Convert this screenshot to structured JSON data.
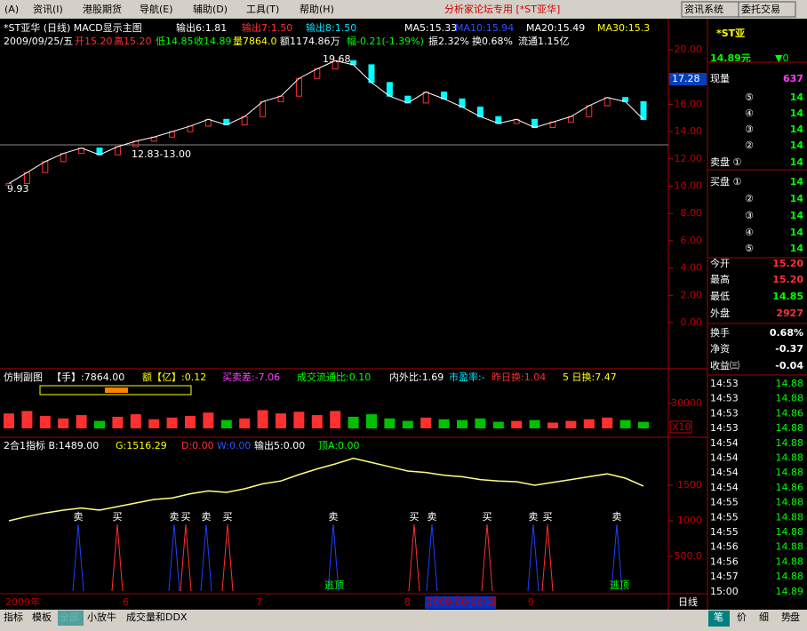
{
  "menu": {
    "items": [
      "(A)",
      "资讯(I)",
      "港股期货",
      "导航(E)",
      "辅助(D)",
      "工具(T)",
      "帮助(H)"
    ],
    "title": "分析家论坛专用 [*ST亚华]",
    "buttons": [
      "资讯系统",
      "委托交易"
    ]
  },
  "main": {
    "header": [
      {
        "text": "*ST亚华 (日线) MACD显示主图",
        "color": "#ffffff"
      },
      {
        "text": "输出6:1.81",
        "color": "#ffffff"
      },
      {
        "text": "输出7:1.50",
        "color": "#ff3030"
      },
      {
        "text": "输出8:1.50",
        "color": "#00e0ff"
      },
      {
        "text": "MA5:15.33",
        "color": "#ffffff"
      },
      {
        "text": "MA10:15.94",
        "color": "#3050ff"
      },
      {
        "text": "MA20:15.49",
        "color": "#ffffff"
      },
      {
        "text": "MA30:15.3",
        "color": "#ffff00"
      }
    ],
    "info": [
      {
        "text": "2009/09/25/五",
        "color": "#ffffff"
      },
      {
        "text": "开15.20",
        "color": "#ff3030"
      },
      {
        "text": "高15.20",
        "color": "#ff3030"
      },
      {
        "text": "低14.85",
        "color": "#00ff00"
      },
      {
        "text": "收14.89",
        "color": "#00ff00"
      },
      {
        "text": "量7864.0",
        "color": "#ffff00"
      },
      {
        "text": "额1174.86万",
        "color": "#ffffff"
      },
      {
        "text": "幅-0.21(-1.39%)",
        "color": "#00ff00"
      },
      {
        "text": "振2.32%",
        "color": "#ffffff"
      },
      {
        "text": "换0.68%",
        "color": "#ffffff"
      },
      {
        "text": "流通1.15亿",
        "color": "#ffffff"
      }
    ],
    "annotations": [
      "19.68",
      "12.83-13.00",
      "9.93"
    ],
    "price_tag": "17.28",
    "yticks": [
      {
        "value": 0,
        "label": "0.00"
      },
      {
        "value": 2,
        "label": "2.00"
      },
      {
        "value": 4,
        "label": "4.00"
      },
      {
        "value": 6,
        "label": "6.00"
      },
      {
        "value": 8,
        "label": "8.00"
      },
      {
        "value": 10,
        "label": "10.00"
      },
      {
        "value": 12,
        "label": "12.00"
      },
      {
        "value": 14,
        "label": "14.00"
      },
      {
        "value": 16,
        "label": "16.00"
      },
      {
        "value": 18,
        "label": "18.00"
      },
      {
        "value": 20,
        "label": "20.00"
      }
    ],
    "closes": [
      10.2,
      11.0,
      11.8,
      12.4,
      12.8,
      12.3,
      12.9,
      13.3,
      13.6,
      14.0,
      14.4,
      14.9,
      14.5,
      15.1,
      16.2,
      16.6,
      17.9,
      18.6,
      19.2,
      18.9,
      17.6,
      16.6,
      16.1,
      16.9,
      16.4,
      15.8,
      15.1,
      14.6,
      14.9,
      14.3,
      14.7,
      15.1,
      15.9,
      16.5,
      16.2,
      14.89
    ]
  },
  "volume": {
    "header": [
      {
        "text": "仿制副图",
        "color": "#ffffff"
      },
      {
        "text": "【手】:7864.00",
        "color": "#ffffff"
      },
      {
        "text": "额【亿】:0.12",
        "color": "#ffff00"
      },
      {
        "text": "买卖差:-7.06",
        "color": "#ff40ff"
      },
      {
        "text": "成交流通比:0.10",
        "color": "#00ff00"
      },
      {
        "text": "内外比:1.69",
        "color": "#ffffff"
      },
      {
        "text": "市盈率:-",
        "color": "#00e0ff"
      },
      {
        "text": "昨日换:1.04",
        "color": "#ff3030"
      },
      {
        "text": "5 日换:7.47",
        "color": "#ffff00"
      }
    ],
    "yticks": [
      30000
    ],
    "scale": "X10",
    "values": [
      18000,
      21000,
      15000,
      12000,
      16000,
      9000,
      14000,
      17000,
      11000,
      13000,
      15000,
      19000,
      10000,
      12000,
      22000,
      18000,
      20000,
      16000,
      21000,
      14000,
      17000,
      12000,
      9000,
      13000,
      11000,
      10000,
      12000,
      8000,
      9000,
      10000,
      7000,
      9000,
      11000,
      13000,
      10000,
      7864
    ]
  },
  "indicator": {
    "header": [
      {
        "text": "2合1指标 B:1489.00",
        "color": "#ffffff"
      },
      {
        "text": "G:1516.29",
        "color": "#ffff00"
      },
      {
        "text": "D:0.00",
        "color": "#ff3030"
      },
      {
        "text": "W:0.00",
        "color": "#3050ff"
      },
      {
        "text": "输出5:0.00",
        "color": "#ffffff"
      },
      {
        "text": "顶A:0.00",
        "color": "#00ff00"
      }
    ],
    "yticks": [
      {
        "value": 500,
        "label": "500.0"
      },
      1000,
      1500
    ],
    "values": [
      1000,
      1060,
      1110,
      1150,
      1180,
      1150,
      1200,
      1250,
      1300,
      1320,
      1380,
      1420,
      1400,
      1450,
      1520,
      1560,
      1650,
      1730,
      1800,
      1880,
      1820,
      1760,
      1700,
      1680,
      1640,
      1620,
      1580,
      1560,
      1550,
      1500,
      1540,
      1580,
      1620,
      1660,
      1600,
      1489
    ],
    "signals": [
      "卖",
      "买",
      "卖",
      "买",
      "卖",
      "买",
      "卖",
      "买",
      "卖",
      "买",
      "卖",
      "买",
      "卖"
    ],
    "escape": [
      "逃顶",
      "逃顶"
    ]
  },
  "dates": [
    "2009年",
    "6",
    "7",
    "8",
    "2009/08/06/四",
    "9",
    "日线"
  ],
  "tabs": [
    "指标",
    "模板",
    "全部",
    "小放牛",
    "成交量和DDX"
  ],
  "quote": {
    "name": "*ST亚",
    "price": "14.89元",
    "change": "▼0",
    "rows": [
      [
        "现量",
        "637"
      ],
      [
        "⑤",
        "14"
      ],
      [
        "④",
        "14"
      ],
      [
        "③",
        "14"
      ],
      [
        "②",
        "14"
      ],
      [
        "卖盘 ①",
        "14"
      ],
      [
        "买盘 ①",
        "14"
      ],
      [
        "②",
        "14"
      ],
      [
        "③",
        "14"
      ],
      [
        "④",
        "14"
      ],
      [
        "⑤",
        "14"
      ],
      [
        "今开",
        "15.20"
      ],
      [
        "最高",
        "15.20"
      ],
      [
        "最低",
        "14.85"
      ],
      [
        "外盘",
        "2927"
      ],
      [
        "换手",
        "0.68%"
      ],
      [
        "净资",
        "-0.37"
      ],
      [
        "收益㈢",
        "-0.04"
      ]
    ],
    "ticks": [
      [
        "14:53",
        "14.88"
      ],
      [
        "14:53",
        "14.88"
      ],
      [
        "14:53",
        "14.86"
      ],
      [
        "14:53",
        "14.88"
      ],
      [
        "14:54",
        "14.88"
      ],
      [
        "14:54",
        "14.88"
      ],
      [
        "14:54",
        "14.88"
      ],
      [
        "14:54",
        "14.86"
      ],
      [
        "14:55",
        "14.88"
      ],
      [
        "14:55",
        "14.88"
      ],
      [
        "14:55",
        "14.88"
      ],
      [
        "14:56",
        "14.88"
      ],
      [
        "14:56",
        "14.88"
      ],
      [
        "14:57",
        "14.88"
      ],
      [
        "15:00",
        "14.89"
      ]
    ],
    "tabs": [
      "笔",
      "价",
      "细",
      "势",
      "盘"
    ]
  }
}
